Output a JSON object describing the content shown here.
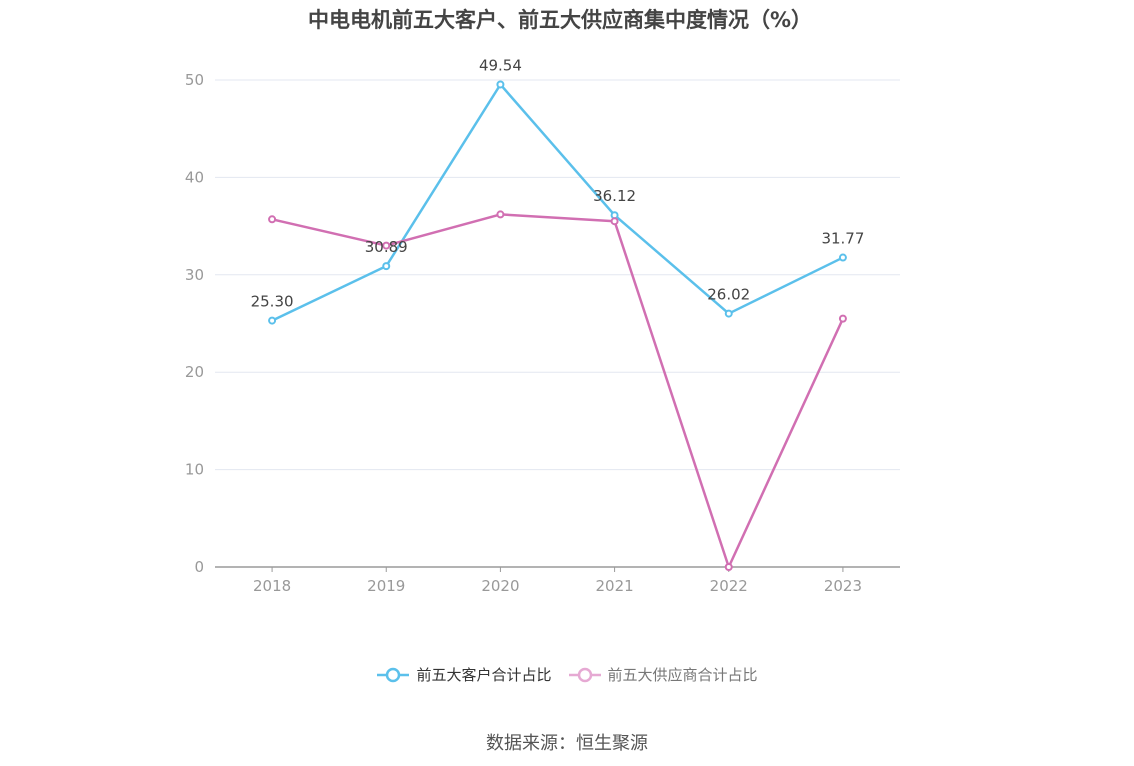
{
  "title": "中电电机前五大客户、前五大供应商集中度情况（%）",
  "source": "数据来源：恒生聚源",
  "chart_data": {
    "type": "line",
    "title": "中电电机前五大客户、前五大供应商集中度情况（%）",
    "categories": [
      "2018",
      "2019",
      "2020",
      "2021",
      "2022",
      "2023"
    ],
    "y_ticks": [
      "0",
      "10",
      "20",
      "30",
      "40",
      "50"
    ],
    "ylim": [
      0,
      50
    ],
    "grid": true,
    "legend_position": "bottom",
    "series": [
      {
        "name": "前五大客户合计占比",
        "color": "#5bc0eb",
        "values": [
          25.3,
          30.89,
          49.54,
          36.12,
          26.02,
          31.77
        ],
        "labels": [
          "25.30",
          "30.89",
          "49.54",
          "36.12",
          "26.02",
          "31.77"
        ]
      },
      {
        "name": "前五大供应商合计占比",
        "color": "#d16fb2",
        "values": [
          35.7,
          33.0,
          36.2,
          35.5,
          0.0,
          25.5
        ],
        "labels": []
      }
    ]
  }
}
